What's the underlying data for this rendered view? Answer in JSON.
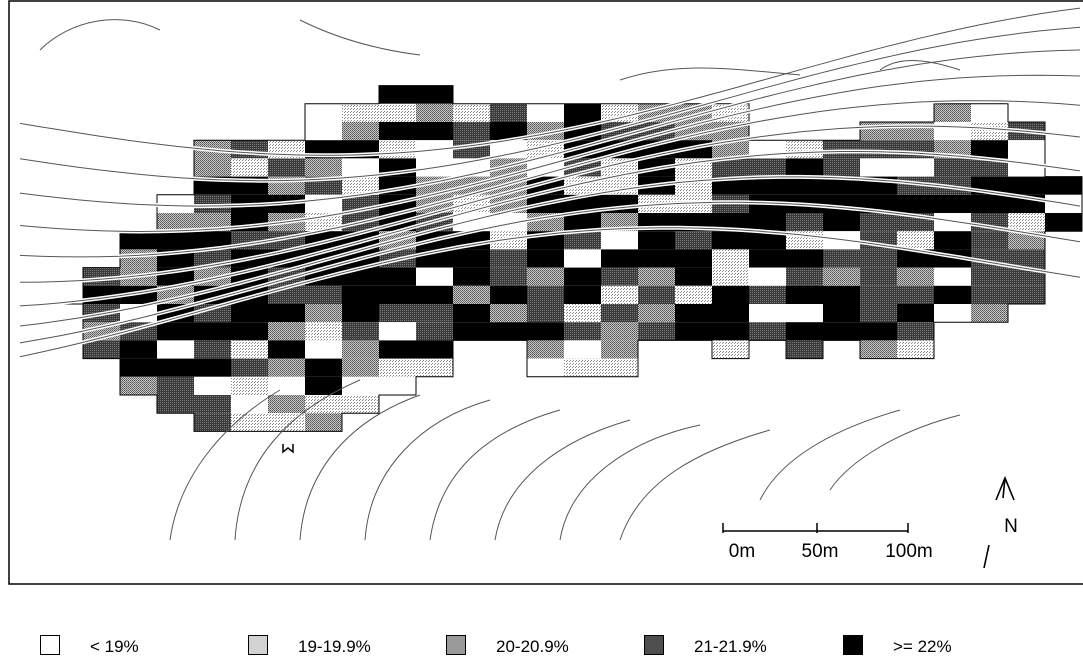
{
  "map": {
    "scale_bar": {
      "labels": [
        "0m",
        "50m",
        "100m"
      ]
    },
    "north_arrow": {
      "label": "N"
    },
    "colors": {
      "frame": "#000000",
      "contour": "#666666",
      "grid_outline": "#000000"
    }
  },
  "legend": [
    {
      "label": "< 19%",
      "color": "#ffffff"
    },
    {
      "label": "19-19.9%",
      "color": "#d2d2d2"
    },
    {
      "label": "20-20.9%",
      "color": "#9a9a9a"
    },
    {
      "label": "21-21.9%",
      "color": "#4e4e4e"
    },
    {
      "label": ">= 22%",
      "color": "#000000"
    }
  ]
}
